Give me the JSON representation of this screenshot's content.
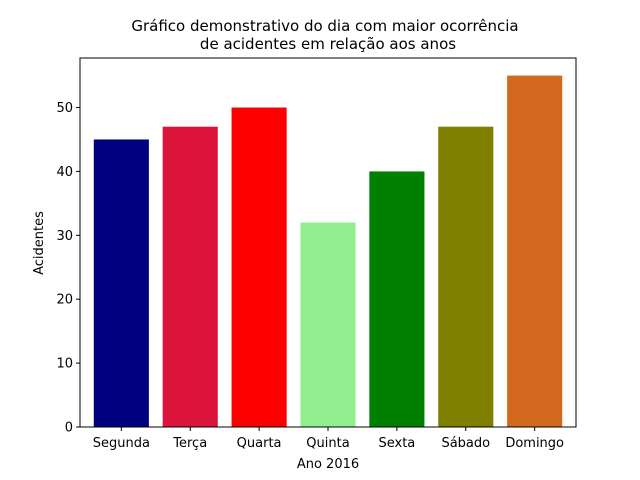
{
  "chart_data": {
    "type": "bar",
    "title_lines": [
      "Gráfico demonstrativo do dia com maior ocorrência",
      "de acidentes em relação aos anos"
    ],
    "xlabel": "Ano 2016",
    "ylabel": "Acidentes",
    "categories": [
      "Segunda",
      "Terça",
      "Quarta",
      "Quinta",
      "Sexta",
      "Sábado",
      "Domingo"
    ],
    "values": [
      45,
      47,
      50,
      32,
      40,
      47,
      55
    ],
    "colors": [
      "#000080",
      "#dc143c",
      "#ff0000",
      "#90ee90",
      "#008000",
      "#808000",
      "#d2691e"
    ],
    "ylim": [
      0,
      57.75
    ],
    "yticks": [
      "0",
      "10",
      "20",
      "30",
      "40",
      "50"
    ],
    "grid": false,
    "legend": "none"
  }
}
